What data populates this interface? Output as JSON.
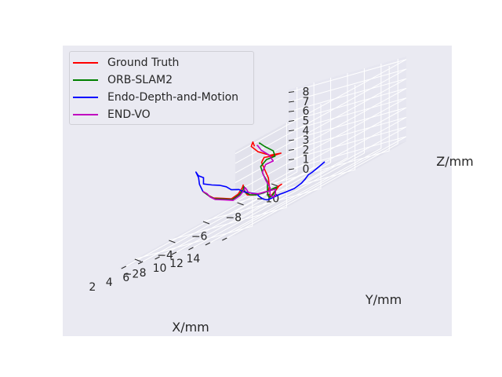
{
  "chart_data": {
    "type": "line",
    "projection": "3d",
    "xlabel": "X/mm",
    "ylabel": "Y/mm",
    "zlabel": "Z/mm",
    "x_ticks": [
      "2",
      "4",
      "6",
      "8",
      "10",
      "12",
      "14"
    ],
    "y_ticks": [
      "−2",
      "−4",
      "−6",
      "−8",
      "−10"
    ],
    "z_ticks": [
      "0",
      "1",
      "2",
      "3",
      "4",
      "5",
      "6",
      "7",
      "8"
    ],
    "xlim": [
      1,
      15
    ],
    "ylim": [
      -11,
      -1
    ],
    "zlim": [
      -0.5,
      8.3
    ],
    "grid": true,
    "legend_position": "top-left",
    "series": [
      {
        "name": "Ground Truth",
        "color": "#ff0000",
        "points": [
          [
            2.6,
            -5.2,
            3.0
          ],
          [
            3.5,
            -4.9,
            2.9
          ],
          [
            4.5,
            -4.6,
            2.7
          ],
          [
            5.5,
            -4.4,
            2.4
          ],
          [
            6.2,
            -4.6,
            2.0
          ],
          [
            6.8,
            -4.8,
            1.6
          ],
          [
            7.2,
            -5.0,
            1.8
          ],
          [
            7.5,
            -5.1,
            2.3
          ],
          [
            7.8,
            -5.0,
            2.6
          ],
          [
            8.2,
            -4.8,
            2.4
          ],
          [
            8.6,
            -4.7,
            2.0
          ],
          [
            8.9,
            -4.7,
            1.6
          ],
          [
            9.2,
            -4.9,
            1.3
          ],
          [
            9.4,
            -5.3,
            1.1
          ],
          [
            9.5,
            -5.7,
            0.9
          ],
          [
            9.3,
            -6.1,
            0.8
          ],
          [
            8.8,
            -6.6,
            0.7
          ],
          [
            8.3,
            -7.0,
            0.6
          ],
          [
            8.0,
            -7.0,
            0.5
          ],
          [
            8.5,
            -6.6,
            0.4
          ],
          [
            9.2,
            -6.1,
            0.4
          ],
          [
            9.9,
            -5.6,
            0.4
          ],
          [
            10.5,
            -5.2,
            0.6
          ],
          [
            10.7,
            -5.0,
            1.0
          ],
          [
            10.7,
            -5.1,
            1.6
          ],
          [
            10.8,
            -5.0,
            2.6
          ],
          [
            10.8,
            -4.8,
            3.6
          ],
          [
            10.8,
            -4.6,
            4.6
          ],
          [
            11.3,
            -4.5,
            5.1
          ],
          [
            12.0,
            -4.7,
            4.9
          ],
          [
            12.7,
            -4.8,
            4.9
          ],
          [
            12.2,
            -4.4,
            5.2
          ],
          [
            11.6,
            -4.0,
            6.1
          ],
          [
            11.4,
            -3.7,
            7.0
          ],
          [
            12.0,
            -3.5,
            7.5
          ],
          [
            12.6,
            -3.3,
            7.1
          ]
        ]
      },
      {
        "name": "ORB-SLAM2",
        "color": "#008000",
        "points": [
          [
            2.6,
            -5.2,
            3.0
          ],
          [
            3.6,
            -4.9,
            2.8
          ],
          [
            4.6,
            -4.6,
            2.6
          ],
          [
            5.6,
            -4.4,
            2.3
          ],
          [
            6.3,
            -4.6,
            1.9
          ],
          [
            6.9,
            -4.8,
            1.5
          ],
          [
            7.3,
            -5.0,
            1.7
          ],
          [
            7.6,
            -5.1,
            2.1
          ],
          [
            7.9,
            -5.0,
            2.4
          ],
          [
            8.3,
            -4.8,
            2.2
          ],
          [
            8.7,
            -4.7,
            1.9
          ],
          [
            9.0,
            -4.8,
            1.5
          ],
          [
            9.3,
            -5.0,
            1.2
          ],
          [
            9.4,
            -5.4,
            1.0
          ],
          [
            9.3,
            -5.8,
            0.9
          ],
          [
            9.0,
            -6.2,
            0.8
          ],
          [
            8.7,
            -6.5,
            0.7
          ],
          [
            9.0,
            -6.3,
            0.5
          ],
          [
            9.6,
            -5.9,
            0.4
          ],
          [
            10.2,
            -5.5,
            0.4
          ],
          [
            10.8,
            -5.1,
            0.5
          ],
          [
            11.2,
            -4.8,
            0.8
          ],
          [
            11.5,
            -4.6,
            1.4
          ],
          [
            11.5,
            -4.6,
            2.4
          ],
          [
            11.4,
            -4.4,
            3.4
          ],
          [
            11.5,
            -4.2,
            4.4
          ],
          [
            12.0,
            -4.3,
            4.9
          ],
          [
            12.6,
            -4.5,
            4.9
          ],
          [
            12.8,
            -4.3,
            5.6
          ],
          [
            12.6,
            -3.9,
            6.5
          ],
          [
            12.8,
            -3.5,
            7.2
          ],
          [
            13.2,
            -3.3,
            7.2
          ]
        ]
      },
      {
        "name": "Endo-Depth-and-Motion",
        "color": "#0000ff",
        "points": [
          [
            2.6,
            -5.2,
            3.0
          ],
          [
            2.8,
            -4.9,
            4.0
          ],
          [
            3.1,
            -4.7,
            4.8
          ],
          [
            3.4,
            -4.4,
            5.6
          ],
          [
            3.9,
            -4.3,
            5.2
          ],
          [
            4.3,
            -4.4,
            4.8
          ],
          [
            4.5,
            -4.3,
            4.2
          ],
          [
            5.3,
            -4.4,
            3.8
          ],
          [
            6.0,
            -4.5,
            3.5
          ],
          [
            6.6,
            -4.6,
            3.1
          ],
          [
            7.0,
            -4.7,
            2.6
          ],
          [
            7.5,
            -4.9,
            2.3
          ],
          [
            8.2,
            -4.8,
            2.0
          ],
          [
            8.9,
            -4.9,
            1.6
          ],
          [
            9.4,
            -5.0,
            1.3
          ],
          [
            9.9,
            -4.9,
            1.0
          ],
          [
            10.4,
            -4.9,
            0.6
          ],
          [
            10.9,
            -4.9,
            0.4
          ],
          [
            10.4,
            -5.5,
            0.2
          ],
          [
            9.7,
            -6.2,
            0.0
          ],
          [
            9.3,
            -6.7,
            -0.2
          ],
          [
            9.0,
            -7.4,
            -0.4
          ],
          [
            8.4,
            -8.1,
            -0.4
          ],
          [
            7.6,
            -8.7,
            -0.4
          ],
          [
            6.8,
            -9.3,
            -0.3
          ],
          [
            6.2,
            -9.8,
            -0.4
          ],
          [
            5.6,
            -10.4,
            -0.4
          ],
          [
            5.5,
            -10.9,
            -0.2
          ]
        ]
      },
      {
        "name": "END-VO",
        "color": "#c000c0",
        "points": [
          [
            2.6,
            -5.2,
            3.0
          ],
          [
            3.7,
            -4.9,
            2.8
          ],
          [
            4.7,
            -4.6,
            2.5
          ],
          [
            5.7,
            -4.4,
            2.2
          ],
          [
            6.4,
            -4.6,
            1.8
          ],
          [
            7.0,
            -4.8,
            1.4
          ],
          [
            7.4,
            -5.0,
            1.6
          ],
          [
            7.7,
            -5.1,
            2.0
          ],
          [
            8.0,
            -5.0,
            2.3
          ],
          [
            8.4,
            -4.9,
            2.1
          ],
          [
            8.8,
            -4.8,
            1.8
          ],
          [
            9.1,
            -4.9,
            1.5
          ],
          [
            9.4,
            -5.1,
            1.2
          ],
          [
            9.5,
            -5.5,
            1.0
          ],
          [
            9.3,
            -5.9,
            0.8
          ],
          [
            9.0,
            -6.3,
            0.6
          ],
          [
            9.4,
            -6.1,
            0.4
          ],
          [
            10.0,
            -5.8,
            0.3
          ],
          [
            10.7,
            -5.4,
            0.3
          ],
          [
            11.3,
            -5.0,
            0.5
          ],
          [
            11.8,
            -4.6,
            1.0
          ],
          [
            12.0,
            -4.5,
            1.8
          ],
          [
            11.9,
            -4.3,
            2.8
          ],
          [
            11.9,
            -4.1,
            3.8
          ],
          [
            12.3,
            -4.1,
            4.5
          ],
          [
            13.0,
            -4.2,
            4.6
          ],
          [
            13.1,
            -3.9,
            5.5
          ],
          [
            13.0,
            -3.5,
            6.4
          ],
          [
            13.2,
            -3.2,
            7.1
          ],
          [
            13.5,
            -3.0,
            7.3
          ]
        ]
      }
    ]
  }
}
